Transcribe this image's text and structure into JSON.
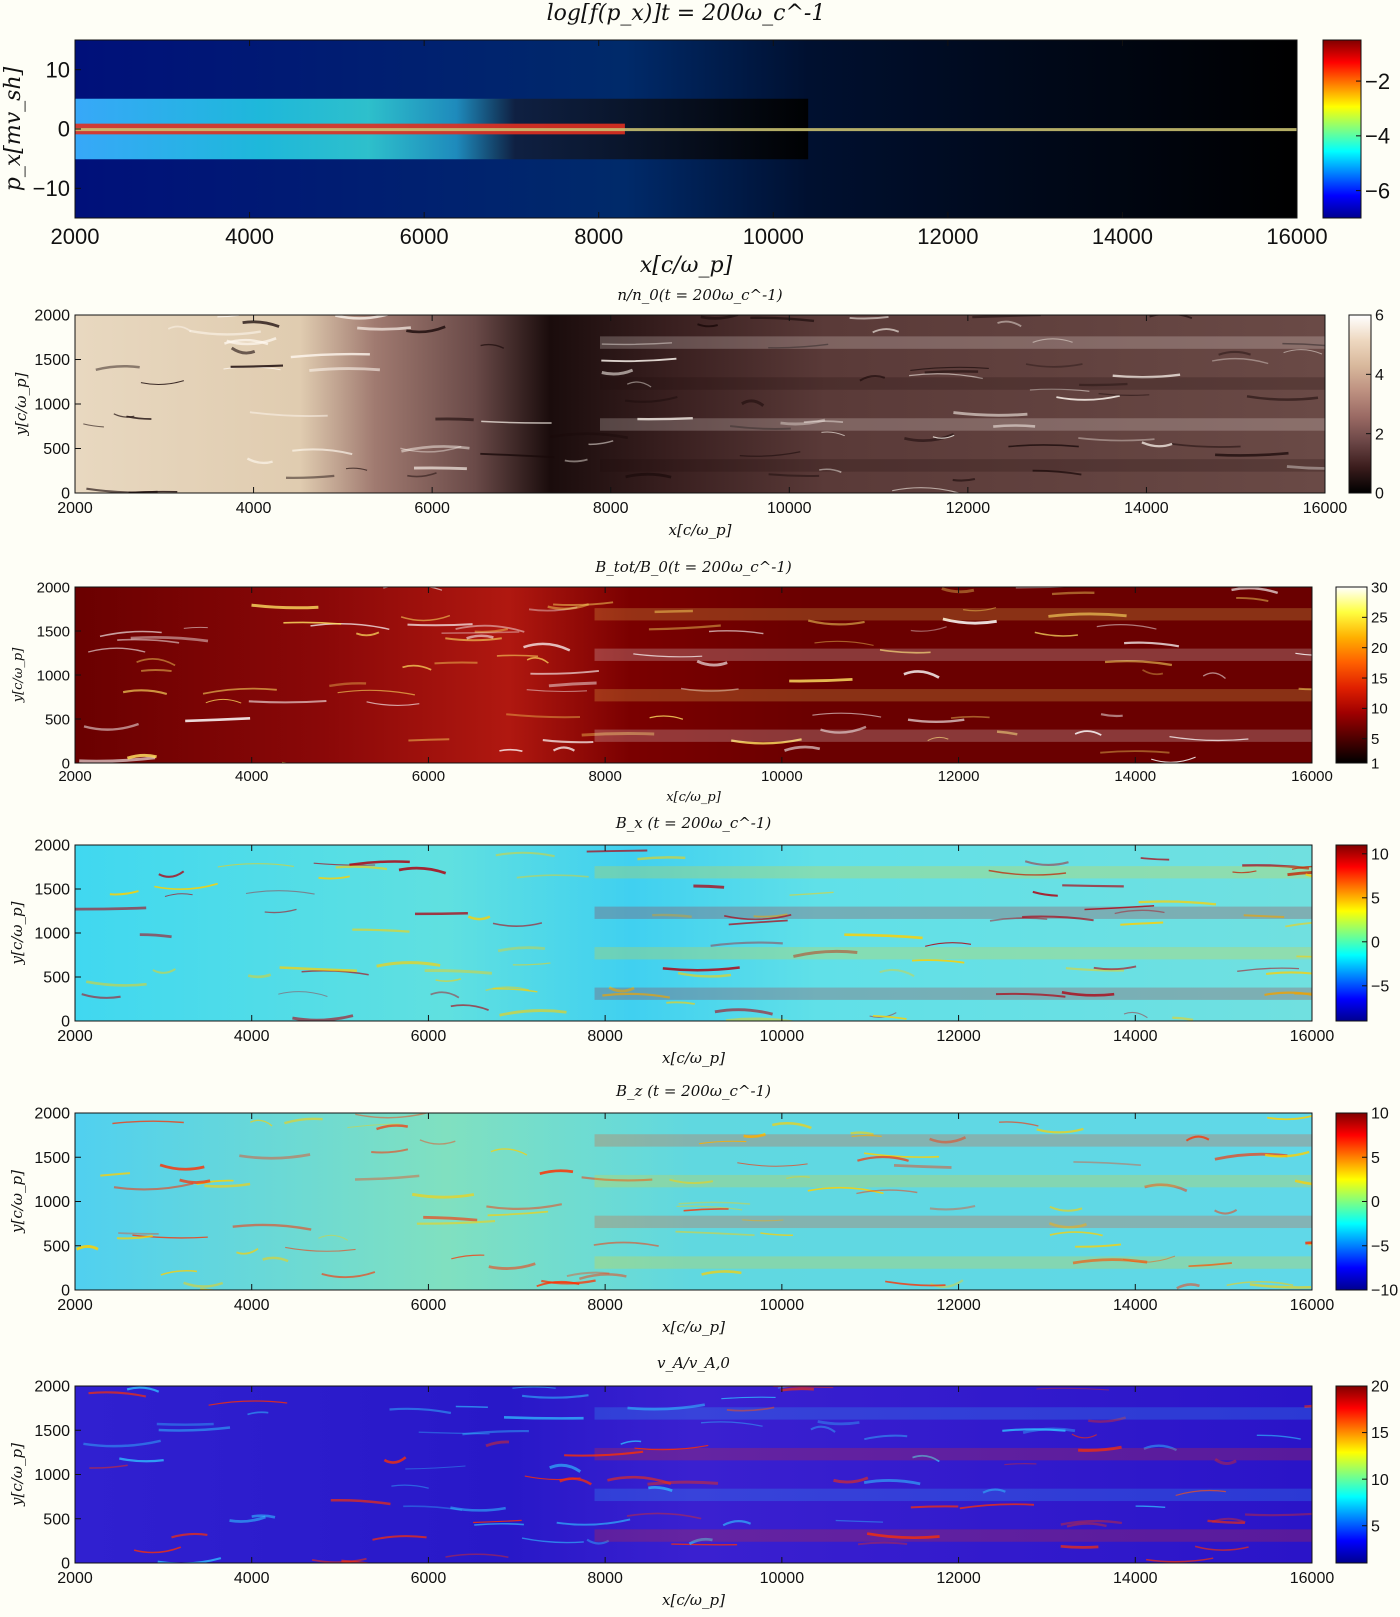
{
  "figure_colors": {
    "background": "#fefef6",
    "axis": "#111111",
    "jet_low": "#00008f",
    "jet_high": "#800000",
    "hot_low": "#000000",
    "hot_high": "#ffffff",
    "pink_low": "#000000",
    "pink_high": "#ffffff"
  },
  "chart_data": [
    {
      "type": "heatmap",
      "title": "log[f(p_x)]t = 200ω_c^-1",
      "xlabel": "x[c/ω_p]",
      "ylabel": "p_x[mv_sh]",
      "xlim": [
        2000,
        16000
      ],
      "ylim": [
        -15,
        15
      ],
      "xticks": [
        "2000",
        "4000",
        "6000",
        "8000",
        "10000",
        "12000",
        "14000",
        "16000"
      ],
      "yticks": [
        "−10",
        "0",
        "10"
      ],
      "colormap": "jet",
      "colorbar": {
        "range": [
          -7,
          -0.5
        ],
        "ticks": [
          "−2",
          "−4",
          "−6"
        ]
      }
    },
    {
      "type": "heatmap",
      "title": "n/n_0(t = 200ω_c^-1)",
      "xlabel": "x[c/ω_p]",
      "ylabel": "y[c/ω_p]",
      "xlim": [
        2000,
        16000
      ],
      "ylim": [
        0,
        2000
      ],
      "xticks": [
        "2000",
        "4000",
        "6000",
        "8000",
        "10000",
        "12000",
        "14000",
        "16000"
      ],
      "yticks": [
        "0",
        "500",
        "1000",
        "1500",
        "2000"
      ],
      "colormap": "pink",
      "colorbar": {
        "range": [
          0,
          6
        ],
        "ticks": [
          "0",
          "2",
          "4",
          "6"
        ]
      }
    },
    {
      "type": "heatmap",
      "title": "B_tot/B_0(t = 200ω_c^-1)",
      "xlabel": "x[c/ω_p]",
      "ylabel": "y[c/ω_p]",
      "xlim": [
        2000,
        16000
      ],
      "ylim": [
        0,
        2000
      ],
      "xticks": [
        "2000",
        "4000",
        "6000",
        "8000",
        "10000",
        "12000",
        "14000",
        "16000"
      ],
      "yticks": [
        "0",
        "500",
        "1000",
        "1500",
        "2000"
      ],
      "colormap": "hot",
      "colorbar": {
        "range": [
          1,
          30
        ],
        "ticks": [
          "1",
          "5",
          "10",
          "15",
          "20",
          "25",
          "30"
        ]
      }
    },
    {
      "type": "heatmap",
      "title": "B_x   (t = 200ω_c^-1)",
      "xlabel": "x[c/ω_p]",
      "ylabel": "y[c/ω_p]",
      "xlim": [
        2000,
        16000
      ],
      "ylim": [
        0,
        2000
      ],
      "xticks": [
        "2000",
        "4000",
        "6000",
        "8000",
        "10000",
        "12000",
        "14000",
        "16000"
      ],
      "yticks": [
        "0",
        "500",
        "1000",
        "1500",
        "2000"
      ],
      "colormap": "jet",
      "colorbar": {
        "range": [
          -9,
          11
        ],
        "ticks": [
          "−5",
          "0",
          "5",
          "10"
        ]
      }
    },
    {
      "type": "heatmap",
      "title": "B_z   (t = 200ω_c^-1)",
      "xlabel": "x[c/ω_p]",
      "ylabel": "y[c/ω_p]",
      "xlim": [
        2000,
        16000
      ],
      "ylim": [
        0,
        2000
      ],
      "xticks": [
        "2000",
        "4000",
        "6000",
        "8000",
        "10000",
        "12000",
        "14000",
        "16000"
      ],
      "yticks": [
        "0",
        "500",
        "1000",
        "1500",
        "2000"
      ],
      "colormap": "jet",
      "colorbar": {
        "range": [
          -10,
          10
        ],
        "ticks": [
          "−10",
          "−5",
          "0",
          "5",
          "10"
        ]
      }
    },
    {
      "type": "heatmap",
      "title": "v_A/v_A,0",
      "xlabel": "x[c/ω_p]",
      "ylabel": "y[c/ω_p]",
      "xlim": [
        2000,
        16000
      ],
      "ylim": [
        0,
        2000
      ],
      "xticks": [
        "2000",
        "4000",
        "6000",
        "8000",
        "10000",
        "12000",
        "14000",
        "16000"
      ],
      "yticks": [
        "0",
        "500",
        "1000",
        "1500",
        "2000"
      ],
      "colormap": "jet",
      "colorbar": {
        "range": [
          1,
          20
        ],
        "ticks": [
          "5",
          "10",
          "15",
          "20"
        ]
      }
    }
  ]
}
